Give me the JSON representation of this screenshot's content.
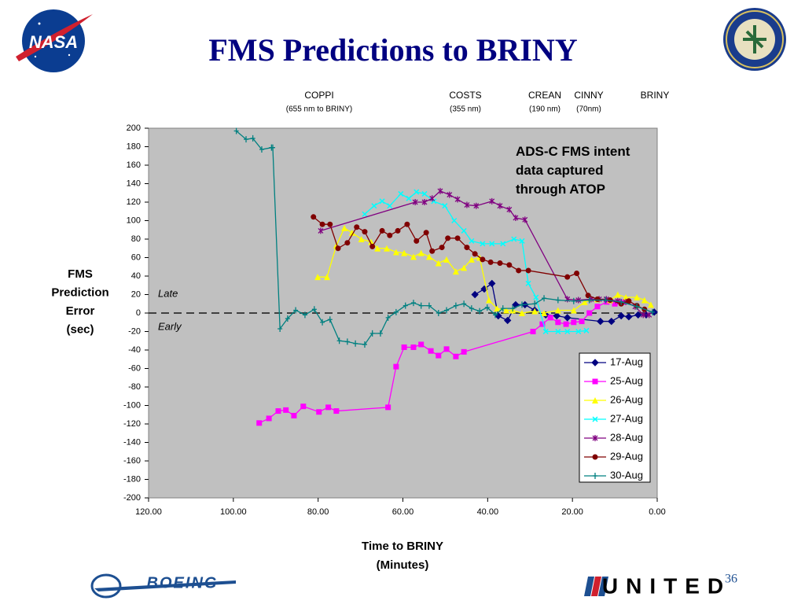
{
  "title": "FMS Predictions to BRINY",
  "logos": {
    "nasa": "NASA",
    "boeing": "BOEING",
    "united": "UNITED"
  },
  "page_number": "36",
  "chart_data": {
    "type": "line",
    "waypoints": [
      {
        "name": "COPPI",
        "distance": "(655 nm to BRINY)"
      },
      {
        "name": "COSTS",
        "distance": "(355 nm)"
      },
      {
        "name": "CREAN",
        "distance": "(190 nm)"
      },
      {
        "name": "CINNY",
        "distance": "(70nm)"
      },
      {
        "name": "BRINY"
      }
    ],
    "annotation": "ADS-C FMS intent data captured through ATOP",
    "late_label": "Late",
    "early_label": "Early",
    "y_label": [
      "FMS",
      "Prediction",
      "Error",
      "(sec)"
    ],
    "x_label": [
      "Time to BRINY",
      "(Minutes)"
    ],
    "xlim": [
      120,
      0
    ],
    "ylim": [
      -200,
      200
    ],
    "xticks": [
      {
        "value": 120,
        "label": "120.00"
      },
      {
        "value": 100,
        "label": "100.00"
      },
      {
        "value": 80,
        "label": "80.00"
      },
      {
        "value": 60,
        "label": "60.00"
      },
      {
        "value": 40,
        "label": "40.00"
      },
      {
        "value": 20,
        "label": "20.00"
      },
      {
        "value": 0,
        "label": "0.00"
      }
    ],
    "yticks": [
      -200,
      -180,
      -160,
      -140,
      -120,
      -100,
      -80,
      -60,
      -40,
      -20,
      0,
      20,
      40,
      60,
      80,
      100,
      120,
      140,
      160,
      180,
      200
    ],
    "series": [
      {
        "name": "17-Aug",
        "color": "#000080",
        "marker": "diamond",
        "x": [
          43,
          40.8,
          39,
          37.5,
          35.3,
          33.4,
          31.2,
          28.9,
          26.3,
          23.7,
          21.2,
          13.4,
          10.8,
          8.5,
          6.7,
          4.5,
          2.6,
          0.7
        ],
        "values": [
          20,
          26,
          32,
          -3,
          -8,
          9,
          9,
          3,
          -2,
          -3,
          -5,
          -9,
          -9,
          -3,
          -4,
          -2,
          -2,
          1
        ]
      },
      {
        "name": "25-Aug",
        "color": "#ff00ff",
        "marker": "square",
        "x": [
          93.9,
          91.6,
          89.4,
          87.6,
          85.7,
          83.5,
          79.8,
          77.6,
          75.7,
          63.5,
          61.6,
          59.7,
          57.5,
          55.7,
          53.4,
          51.6,
          49.7,
          47.5,
          45.6,
          29.3,
          27.1,
          25.2,
          23.4,
          21.5,
          19.7,
          17.8,
          16,
          14.1,
          11.9,
          10,
          8.2
        ],
        "values": [
          -119,
          -114,
          -106,
          -105,
          -111,
          -101,
          -107,
          -102,
          -106,
          -102,
          -58,
          -37,
          -37,
          -34,
          -41,
          -46,
          -39,
          -47,
          -42,
          -20,
          -12,
          -5,
          -10,
          -12,
          -10,
          -9,
          0,
          7,
          12,
          10,
          12
        ]
      },
      {
        "name": "26-Aug",
        "color": "#ffff00",
        "marker": "triangle",
        "x": [
          80.1,
          77.9,
          75.7,
          73.8,
          72,
          69.8,
          67.5,
          66,
          63.8,
          61.6,
          59.7,
          57.5,
          55.7,
          53.8,
          51.6,
          49.7,
          47.5,
          45.6,
          43.8,
          41.9,
          39.7,
          37.8,
          35.6,
          34.1,
          31.9,
          28.9,
          26.7,
          23.4,
          19.7,
          17.1,
          14.1,
          11.1,
          9.3,
          7.4,
          4.8,
          3,
          1.5
        ],
        "values": [
          39,
          39,
          73,
          92,
          87,
          80,
          77,
          70,
          70,
          66,
          65,
          61,
          65,
          61,
          54,
          58,
          45,
          49,
          58,
          60,
          14,
          5,
          3,
          3,
          0,
          2,
          0,
          3,
          3,
          12,
          15,
          14,
          20,
          17,
          17,
          14,
          9
        ]
      },
      {
        "name": "27-Aug",
        "color": "#00ffff",
        "marker": "x",
        "x": [
          69,
          66.8,
          64.9,
          63.1,
          60.5,
          58.6,
          56.8,
          54.9,
          52.7,
          50.1,
          47.9,
          45.6,
          43.8,
          41.2,
          39,
          36.4,
          33.8,
          31.9,
          30.4,
          28.6,
          26.3,
          23.4,
          21.2,
          18.6,
          16.7
        ],
        "values": [
          107,
          116,
          121,
          116,
          129,
          124,
          131,
          129,
          121,
          116,
          100,
          89,
          78,
          75,
          75,
          75,
          80,
          78,
          32,
          17,
          -20,
          -20,
          -20,
          -20,
          -19
        ]
      },
      {
        "name": "28-Aug",
        "color": "#800080",
        "marker": "asterisk",
        "x": [
          79.4,
          57.1,
          54.9,
          53.1,
          51.2,
          49,
          47.1,
          44.9,
          42.7,
          39,
          37.1,
          34.9,
          33.4,
          31.2,
          21.2,
          18.6,
          15.6,
          13.7,
          12,
          9.3,
          7.4,
          5.2,
          3.3,
          1.9
        ],
        "values": [
          89,
          120,
          120,
          124,
          132,
          128,
          123,
          117,
          116,
          121,
          116,
          112,
          103,
          101,
          15,
          14,
          15,
          15,
          15,
          13,
          12,
          7,
          -2,
          -2
        ]
      },
      {
        "name": "29-Aug",
        "color": "#800000",
        "marker": "circle",
        "x": [
          81.1,
          79,
          77.2,
          75.3,
          73.1,
          70.9,
          69,
          67.2,
          64.9,
          63.1,
          61.2,
          59,
          56.8,
          54.5,
          53.1,
          50.8,
          49.4,
          47.1,
          44.9,
          43,
          41.2,
          39.3,
          37.1,
          34.9,
          32.7,
          30.4,
          21.2,
          19,
          16.3,
          14.1,
          11.1,
          8.5,
          6.7,
          4.8,
          3
        ],
        "values": [
          104,
          96,
          96,
          70,
          76,
          93,
          88,
          72,
          89,
          84,
          89,
          96,
          78,
          87,
          67,
          71,
          81,
          81,
          71,
          64,
          58,
          55,
          54,
          52,
          46,
          46,
          39,
          43,
          19,
          15,
          14,
          10,
          13,
          8,
          4
        ]
      },
      {
        "name": "30-Aug",
        "color": "#008080",
        "marker": "plus",
        "x": [
          99.3,
          97,
          95.4,
          93.3,
          91,
          90.7,
          89,
          87.2,
          85.3,
          83.1,
          80.9,
          79,
          77.2,
          75,
          73.1,
          71.2,
          69,
          67.2,
          65.3,
          63.5,
          61.6,
          59.4,
          57.5,
          55.7,
          53.8,
          51.6,
          49.7,
          47.5,
          45.6,
          43.8,
          41.9,
          40.1,
          38.2,
          36.4,
          34.1,
          31.9,
          28.9,
          26.7,
          23.4,
          19.7,
          16,
          12.2,
          8.5,
          4.8,
          1.1
        ],
        "values": [
          197,
          188,
          189,
          177,
          179,
          179,
          -17,
          -6,
          3,
          -2,
          4,
          -10,
          -7,
          -30,
          -31,
          -33,
          -34,
          -22,
          -22,
          -5,
          1,
          8,
          11,
          8,
          8,
          0,
          3,
          8,
          10,
          5,
          2,
          6,
          -2,
          5,
          5,
          9,
          10,
          16,
          14,
          13,
          14,
          14,
          12,
          7,
          1
        ]
      }
    ]
  }
}
